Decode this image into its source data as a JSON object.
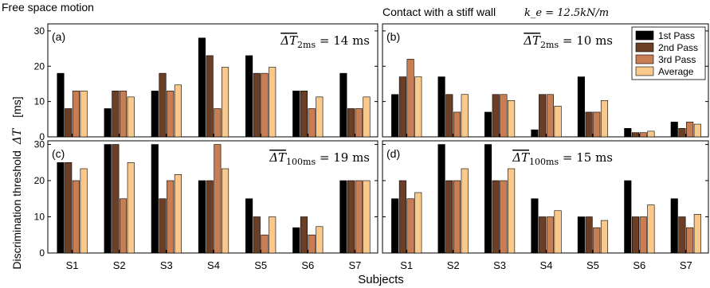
{
  "figure": {
    "left_title": "Free space motion",
    "right_title": "Contact with a stiff wall",
    "right_title_math": "k_e = 12.5kN/m",
    "ylabel": "Discrimination threshold",
    "ylabel_symbol": "ΔT",
    "yunit": "[ms]",
    "xlabel": "Subjects"
  },
  "colors": {
    "1st Pass": "#000000",
    "2nd Pass": "#6b3e26",
    "3rd Pass": "#c97d52",
    "Average": "#f9c98c"
  },
  "chart_data": [
    {
      "type": "bar",
      "panel": "(a)",
      "annotation": "ΔT_2ms = 14 ms",
      "categories": [
        "S1",
        "S2",
        "S3",
        "S4",
        "S5",
        "S6",
        "S7"
      ],
      "ylim": [
        0,
        32
      ],
      "yticks": [
        0,
        10,
        20,
        30
      ],
      "show_ytick_labels": true,
      "series": [
        {
          "name": "1st Pass",
          "values": [
            18,
            8,
            13,
            28,
            23,
            13,
            18
          ]
        },
        {
          "name": "2nd Pass",
          "values": [
            8,
            13,
            18,
            23,
            18,
            13,
            8
          ]
        },
        {
          "name": "3rd Pass",
          "values": [
            13,
            13,
            13,
            8,
            18,
            8,
            8
          ]
        },
        {
          "name": "Average",
          "values": [
            13,
            11.3,
            14.7,
            19.7,
            19.7,
            11.3,
            11.3
          ]
        }
      ]
    },
    {
      "type": "bar",
      "panel": "(b)",
      "annotation": "ΔT_2ms = 10 ms",
      "categories": [
        "S1",
        "S2",
        "S3",
        "S4",
        "S5",
        "S6",
        "S7"
      ],
      "ylim": [
        0,
        32
      ],
      "yticks": [
        0,
        10,
        20,
        30
      ],
      "show_ytick_labels": false,
      "legend": "top-right",
      "series": [
        {
          "name": "1st Pass",
          "values": [
            12,
            17,
            7,
            2,
            17,
            2.4,
            4.2
          ]
        },
        {
          "name": "2nd Pass",
          "values": [
            17,
            12,
            12,
            12,
            7,
            1.2,
            2.4
          ]
        },
        {
          "name": "3rd Pass",
          "values": [
            22,
            7,
            12,
            12,
            7,
            1.2,
            4.2
          ]
        },
        {
          "name": "Average",
          "values": [
            17,
            12,
            10.3,
            8.7,
            10.3,
            1.6,
            3.6
          ]
        }
      ]
    },
    {
      "type": "bar",
      "panel": "(c)",
      "annotation": "ΔT_100ms = 19 ms",
      "categories": [
        "S1",
        "S2",
        "S3",
        "S4",
        "S5",
        "S6",
        "S7"
      ],
      "ylim": [
        0,
        31
      ],
      "yticks": [
        0,
        10,
        20,
        30
      ],
      "show_ytick_labels": true,
      "series": [
        {
          "name": "1st Pass",
          "values": [
            25,
            30,
            30,
            20,
            15,
            7,
            20
          ]
        },
        {
          "name": "2nd Pass",
          "values": [
            25,
            30,
            15,
            20,
            10,
            10,
            20
          ]
        },
        {
          "name": "3rd Pass",
          "values": [
            20,
            15,
            20,
            30,
            5,
            5,
            20
          ]
        },
        {
          "name": "Average",
          "values": [
            23.3,
            25,
            21.7,
            23.3,
            10,
            7.3,
            20
          ]
        }
      ]
    },
    {
      "type": "bar",
      "panel": "(d)",
      "annotation": "ΔT_100ms = 15 ms",
      "categories": [
        "S1",
        "S2",
        "S3",
        "S4",
        "S5",
        "S6",
        "S7"
      ],
      "ylim": [
        0,
        31
      ],
      "yticks": [
        0,
        10,
        20,
        30
      ],
      "show_ytick_labels": false,
      "series": [
        {
          "name": "1st Pass",
          "values": [
            15,
            30,
            30,
            15,
            10,
            20,
            15
          ]
        },
        {
          "name": "2nd Pass",
          "values": [
            20,
            20,
            20,
            10,
            10,
            10,
            10
          ]
        },
        {
          "name": "3rd Pass",
          "values": [
            15,
            20,
            20,
            10,
            7,
            10,
            7
          ]
        },
        {
          "name": "Average",
          "values": [
            16.7,
            23.3,
            23.3,
            11.7,
            9,
            13.3,
            10.7
          ]
        }
      ]
    }
  ]
}
